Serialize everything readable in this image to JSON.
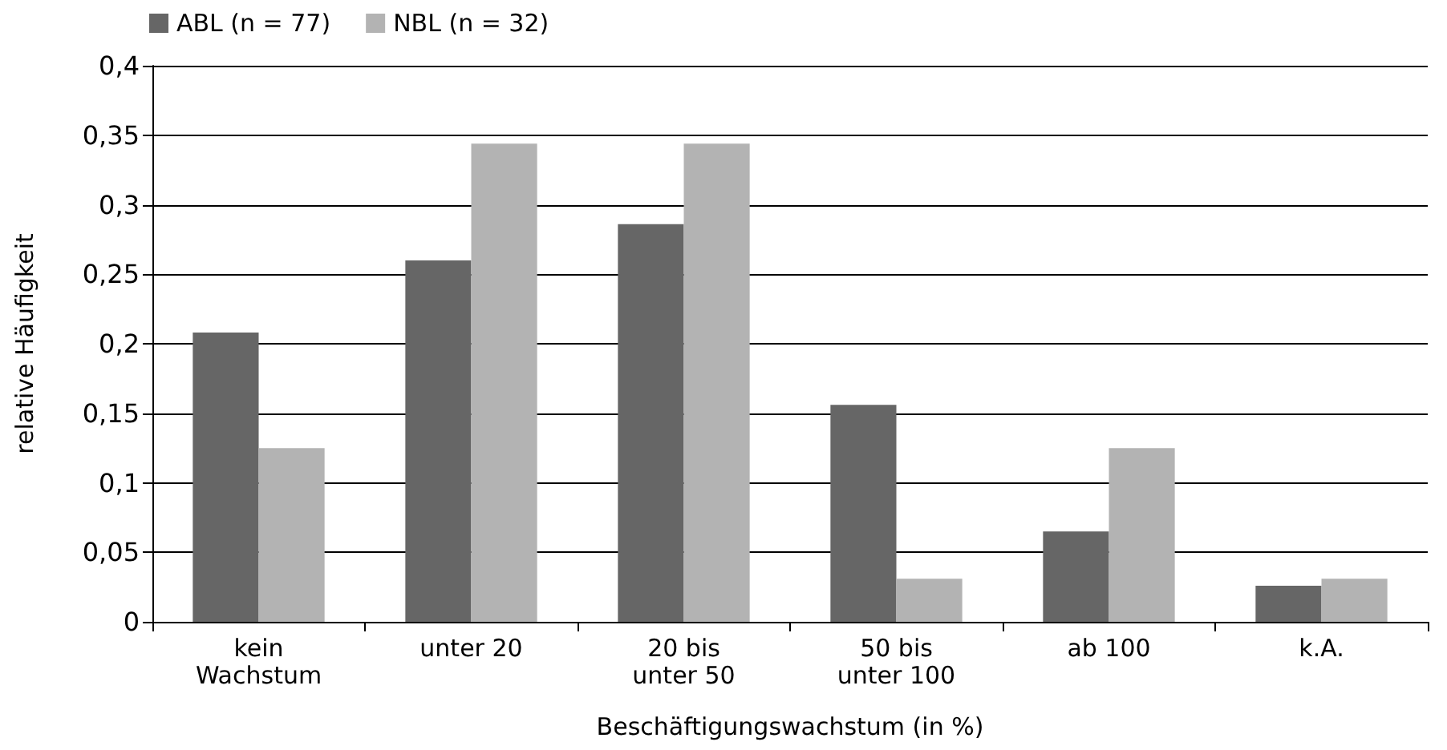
{
  "chart_data": {
    "type": "bar",
    "xlabel": "Beschäftigungswachstum (in %)",
    "ylabel": "relative Häufigkeit",
    "categories": [
      "kein\nWachstum",
      "unter 20",
      "20 bis\nunter 50",
      "50 bis\nunter 100",
      "ab 100",
      "k.A."
    ],
    "series": [
      {
        "name": "ABL (n = 77)",
        "color": "#666666",
        "values": [
          0.208,
          0.26,
          0.286,
          0.156,
          0.065,
          0.026
        ]
      },
      {
        "name": "NBL (n = 32)",
        "color": "#b3b3b3",
        "values": [
          0.125,
          0.344,
          0.344,
          0.031,
          0.125,
          0.031
        ]
      }
    ],
    "ylim": [
      0,
      0.4
    ],
    "yticks": [
      {
        "value": 0,
        "label": "0"
      },
      {
        "value": 0.05,
        "label": "0,05"
      },
      {
        "value": 0.1,
        "label": "0,1"
      },
      {
        "value": 0.15,
        "label": "0,15"
      },
      {
        "value": 0.2,
        "label": "0,2"
      },
      {
        "value": 0.25,
        "label": "0,25"
      },
      {
        "value": 0.3,
        "label": "0,3"
      },
      {
        "value": 0.35,
        "label": "0,35"
      },
      {
        "value": 0.4,
        "label": "0,4"
      }
    ],
    "grid": "y",
    "legend": "top left"
  }
}
